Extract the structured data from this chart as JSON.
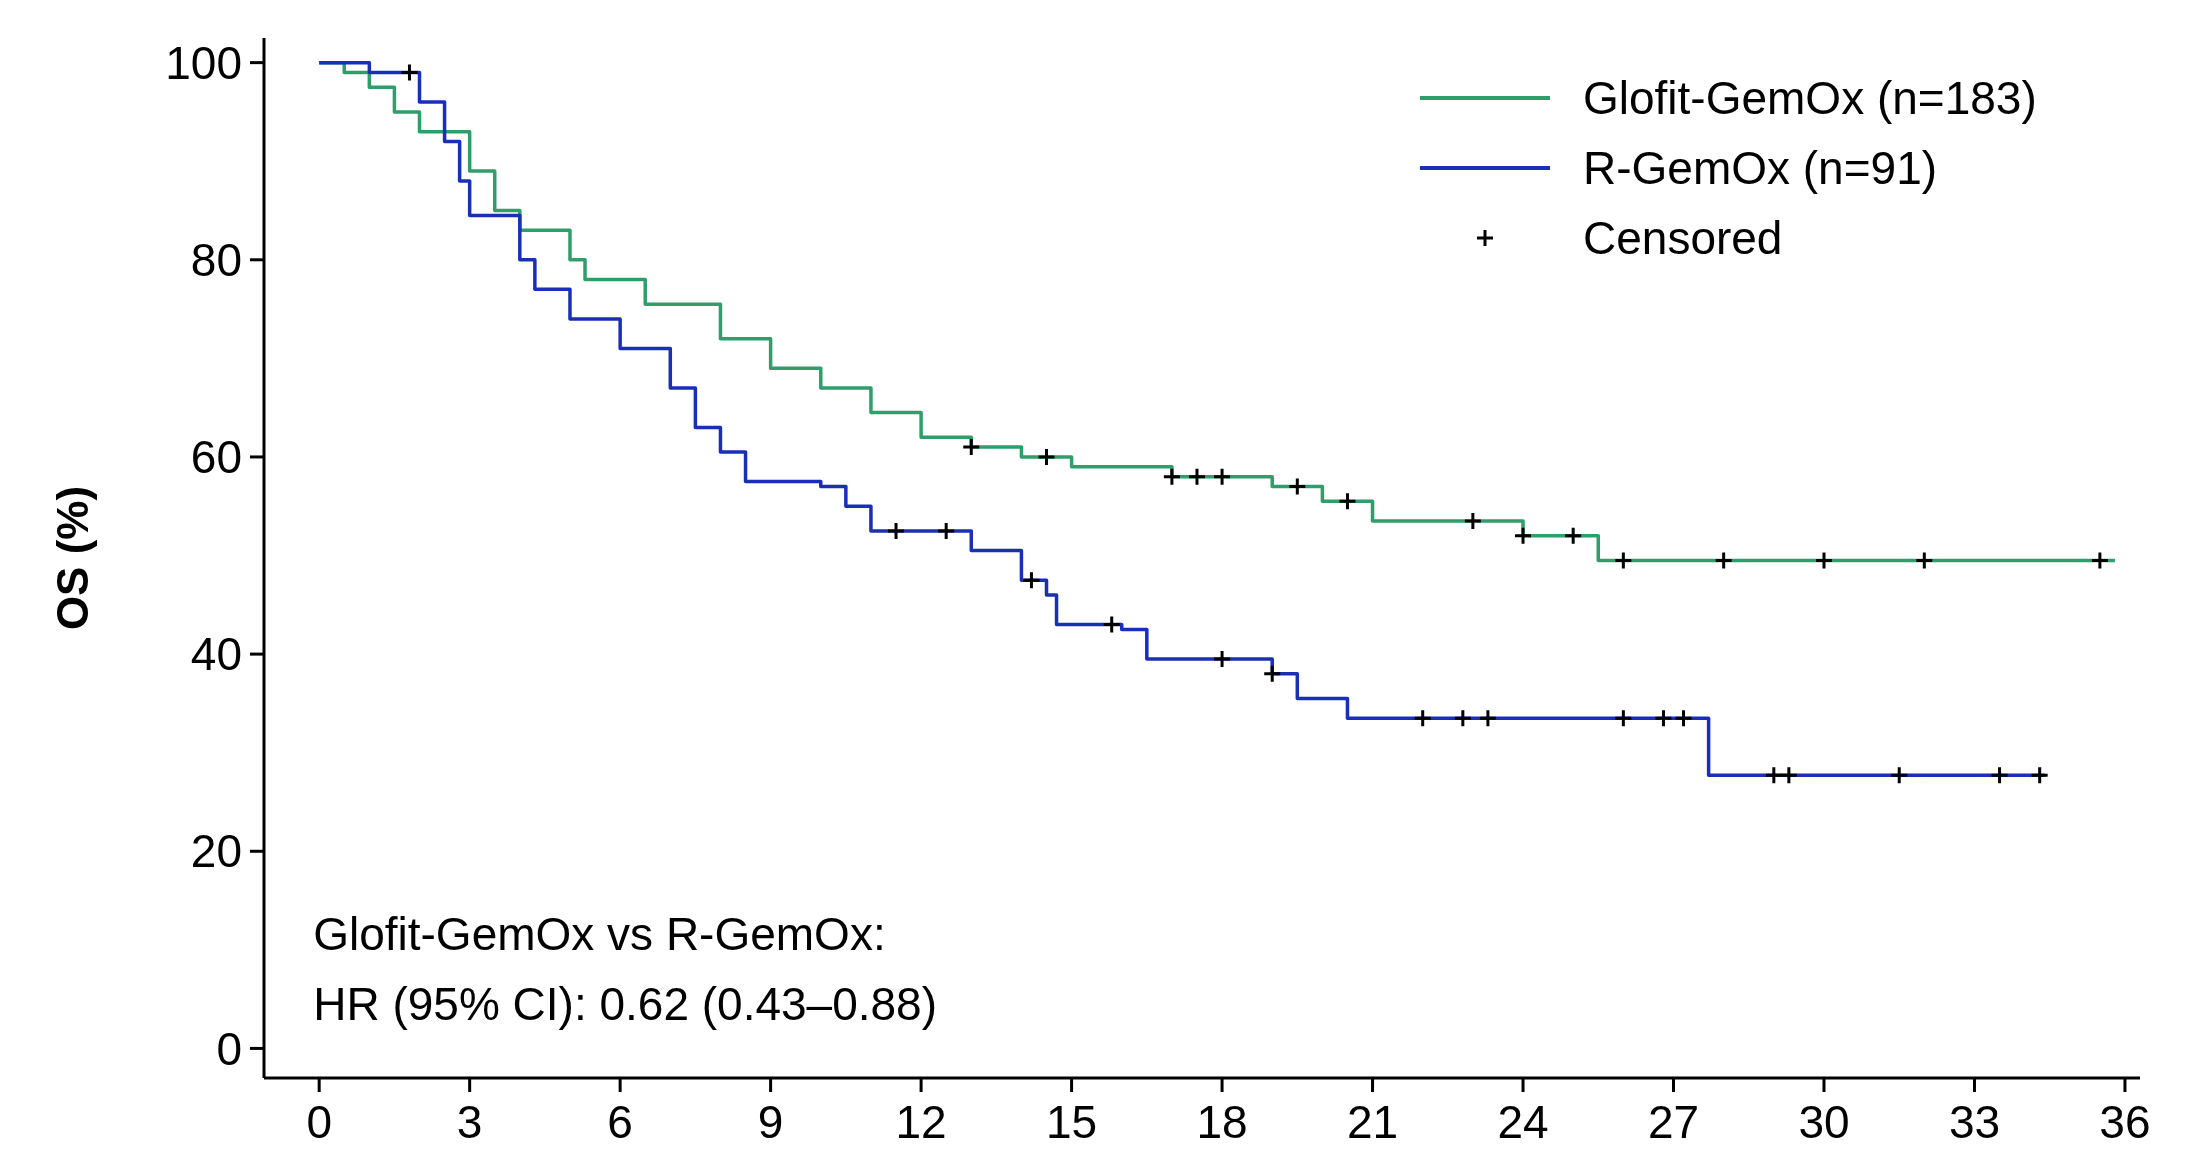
{
  "chart_data": {
    "type": "step",
    "ylabel": "OS (%)",
    "xlim": [
      -1.1,
      36.3
    ],
    "ylim": [
      -3,
      102.5
    ],
    "xticks": [
      0,
      3,
      6,
      9,
      12,
      15,
      18,
      21,
      24,
      27,
      30,
      33,
      36
    ],
    "yticks": [
      0,
      20,
      40,
      60,
      80,
      100
    ],
    "grid": false,
    "legend": "top right",
    "line_style": "solid",
    "annotations": [
      "Glofit-GemOx vs R-GemOx:",
      "HR (95% CI): 0.62 (0.43–0.88)"
    ],
    "series": [
      {
        "name": "Glofit-GemOx (n=183)",
        "color": "#2e9e6b",
        "x": [
          0,
          0.5,
          1,
          1.5,
          2,
          3,
          3.5,
          4,
          5,
          5.3,
          6.5,
          8,
          9,
          10,
          11,
          12,
          13,
          14,
          15,
          17,
          19,
          20,
          21,
          24,
          25.5,
          35.8
        ],
        "values": [
          100,
          99,
          97.5,
          95,
          93,
          89,
          85,
          83,
          80,
          78,
          75.5,
          72,
          69,
          67,
          64.5,
          62,
          61,
          60,
          59,
          58,
          57,
          55.5,
          53.5,
          52,
          49.5,
          49.5
        ]
      },
      {
        "name": "R-GemOx (n=91)",
        "color": "#1a2fb8",
        "x": [
          0,
          1,
          2,
          2.5,
          2.8,
          3,
          4,
          4.3,
          5,
          6,
          7,
          7.5,
          8,
          8.5,
          10,
          10.5,
          11,
          13,
          14,
          14.5,
          14.7,
          16,
          16.5,
          19,
          19.5,
          20.5,
          27.7,
          34.4
        ],
        "values": [
          100,
          99,
          96,
          92,
          88,
          84.5,
          80,
          77,
          74,
          71,
          67,
          63,
          60.5,
          57.5,
          57,
          55,
          52.5,
          50.5,
          47.5,
          46,
          43,
          42.5,
          39.5,
          38,
          35.5,
          33.5,
          27.7,
          27.7
        ]
      },
      {
        "name": "Censored",
        "type": "scatter",
        "marker": "cross",
        "color": "#000000",
        "x": [
          13,
          14.5,
          17,
          17.5,
          18,
          19.5,
          20.5,
          23,
          24,
          25,
          26,
          28,
          30,
          32,
          35.5,
          1.8,
          11.5,
          12.5,
          14.2,
          15.8,
          18,
          19,
          22,
          22.8,
          23.3,
          26,
          26.8,
          27.2,
          29,
          29.3,
          31.5,
          33.5,
          34.3
        ],
        "values": [
          61,
          60,
          58,
          58,
          58,
          57,
          55.5,
          53.5,
          52,
          52,
          49.5,
          49.5,
          49.5,
          49.5,
          49.5,
          99,
          52.5,
          52.5,
          47.5,
          43,
          39.5,
          38,
          33.5,
          33.5,
          33.5,
          33.5,
          33.5,
          33.5,
          27.7,
          27.7,
          27.7,
          27.7,
          27.7
        ]
      }
    ]
  }
}
